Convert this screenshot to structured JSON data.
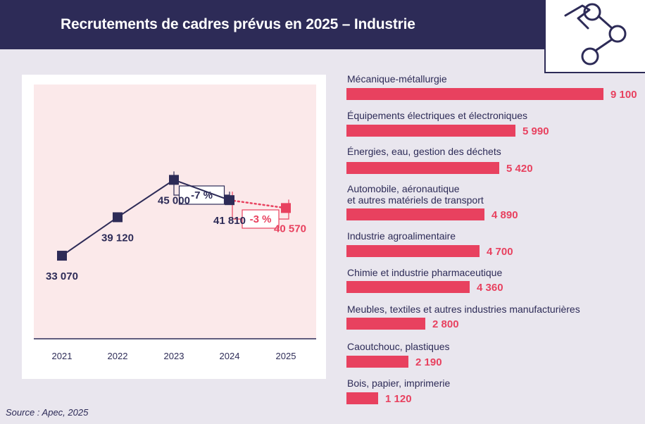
{
  "header": {
    "title": "Recrutements de cadres prévus en 2025 – Industrie"
  },
  "colors": {
    "navy": "#2d2b57",
    "accent": "#e8415f",
    "pink_bg": "#fbe9ea"
  },
  "chart_data": [
    {
      "type": "line",
      "title": "",
      "categories": [
        "2021",
        "2022",
        "2023",
        "2024",
        "2025"
      ],
      "values": [
        33070,
        39120,
        45000,
        41810,
        40570
      ],
      "value_labels": [
        "33 070",
        "39 120",
        "45 000",
        "41 810",
        "40 570"
      ],
      "ylim": [
        20000,
        60000
      ],
      "annotations": [
        {
          "from": "2023",
          "to": "2024",
          "label": "-7 %"
        },
        {
          "from": "2024",
          "to": "2025",
          "label": "-3 %"
        }
      ]
    },
    {
      "type": "bar",
      "orientation": "horizontal",
      "categories": [
        "Mécanique-métallurgie",
        "Équipements électriques et électroniques",
        "Énergies, eau, gestion des déchets",
        "Automobile, aéronautique\net autres matériels de transport",
        "Industrie agroalimentaire",
        "Chimie et industrie pharmaceutique",
        "Meubles, textiles et autres industries manufacturières",
        "Caoutchouc, plastiques",
        "Bois, papier, imprimerie"
      ],
      "values": [
        9100,
        5990,
        5420,
        4890,
        4700,
        4360,
        2800,
        2190,
        1120
      ],
      "value_labels": [
        "9 100",
        "5 990",
        "5 420",
        "4 890",
        "4 700",
        "4 360",
        "2 800",
        "2 190",
        "1 120"
      ],
      "xlim": [
        0,
        9100
      ]
    }
  ],
  "source": "Source : Apec, 2025"
}
